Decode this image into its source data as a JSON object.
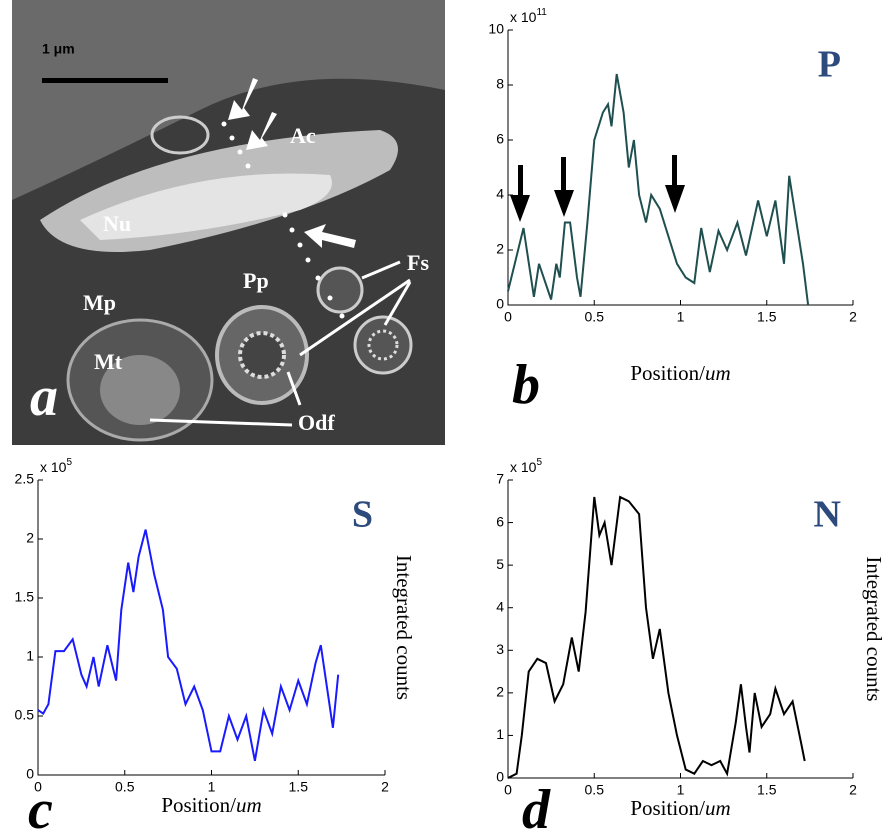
{
  "micrograph": {
    "scale_bar": "1 μm",
    "labels": [
      "Ac",
      "Nu",
      "Pp",
      "Mp",
      "Mt",
      "Fs",
      "Odf"
    ],
    "panel": "a"
  },
  "chart_data": [
    {
      "type": "line",
      "panel": "b",
      "element": "P",
      "color": "#1f4f4f",
      "xlabel": "Position/",
      "xlabel_unit": "um",
      "y_multiplier": "x 10",
      "y_multiplier_exp": "11",
      "xlim": [
        0,
        2
      ],
      "xticks": [
        0,
        0.5,
        1,
        1.5,
        2
      ],
      "ylim": [
        0,
        10
      ],
      "yticks": [
        0,
        2,
        4,
        6,
        8,
        10
      ],
      "x": [
        0,
        0.09,
        0.15,
        0.18,
        0.25,
        0.28,
        0.3,
        0.33,
        0.36,
        0.4,
        0.42,
        0.46,
        0.5,
        0.55,
        0.58,
        0.6,
        0.63,
        0.67,
        0.7,
        0.73,
        0.76,
        0.8,
        0.83,
        0.88,
        0.93,
        0.98,
        1.03,
        1.08,
        1.12,
        1.17,
        1.22,
        1.27,
        1.33,
        1.38,
        1.45,
        1.5,
        1.55,
        1.6,
        1.63,
        1.68,
        1.71,
        1.74
      ],
      "values": [
        0.5,
        2.8,
        0.3,
        1.5,
        0.2,
        1.5,
        1,
        3,
        3,
        1,
        0.3,
        3,
        6,
        7,
        7.3,
        6.5,
        8.4,
        7,
        5,
        6,
        4,
        3,
        4,
        3.5,
        2.5,
        1.5,
        1,
        0.8,
        2.8,
        1.2,
        2.7,
        2,
        3,
        1.8,
        3.8,
        2.5,
        3.8,
        1.5,
        4.7,
        2.7,
        1.5,
        0
      ]
    },
    {
      "type": "line",
      "panel": "c",
      "element": "S",
      "color": "#1a1aff",
      "xlabel": "Position/",
      "xlabel_unit": "um",
      "ylabel": "Integrated counts",
      "y_multiplier": "x 10",
      "y_multiplier_exp": "5",
      "xlim": [
        0,
        2
      ],
      "xticks": [
        0,
        0.5,
        1,
        1.5,
        2
      ],
      "ylim": [
        0,
        2.5
      ],
      "yticks": [
        0,
        0.5,
        1,
        1.5,
        2,
        2.5
      ],
      "x": [
        0,
        0.03,
        0.06,
        0.1,
        0.15,
        0.2,
        0.25,
        0.28,
        0.32,
        0.35,
        0.4,
        0.45,
        0.48,
        0.52,
        0.55,
        0.58,
        0.62,
        0.67,
        0.72,
        0.75,
        0.8,
        0.85,
        0.9,
        0.95,
        1.0,
        1.05,
        1.1,
        1.15,
        1.2,
        1.25,
        1.3,
        1.35,
        1.4,
        1.45,
        1.5,
        1.55,
        1.6,
        1.63,
        1.67,
        1.7,
        1.73
      ],
      "values": [
        0.55,
        0.52,
        0.6,
        1.05,
        1.05,
        1.15,
        0.85,
        0.75,
        1.0,
        0.75,
        1.1,
        0.8,
        1.4,
        1.8,
        1.55,
        1.85,
        2.08,
        1.7,
        1.4,
        1.0,
        0.9,
        0.6,
        0.75,
        0.55,
        0.2,
        0.2,
        0.5,
        0.3,
        0.5,
        0.12,
        0.55,
        0.35,
        0.75,
        0.55,
        0.8,
        0.6,
        0.95,
        1.1,
        0.7,
        0.4,
        0.85
      ]
    },
    {
      "type": "line",
      "panel": "d",
      "element": "N",
      "color": "#000000",
      "xlabel": "Position/",
      "xlabel_unit": "um",
      "ylabel": "Integrated counts",
      "y_multiplier": "x 10",
      "y_multiplier_exp": "5",
      "xlim": [
        0,
        2
      ],
      "xticks": [
        0,
        0.5,
        1,
        1.5,
        2
      ],
      "ylim": [
        0,
        7
      ],
      "yticks": [
        0,
        1,
        2,
        3,
        4,
        5,
        6,
        7
      ],
      "x": [
        0,
        0.05,
        0.08,
        0.12,
        0.17,
        0.22,
        0.27,
        0.32,
        0.37,
        0.41,
        0.45,
        0.5,
        0.53,
        0.56,
        0.6,
        0.65,
        0.7,
        0.76,
        0.8,
        0.84,
        0.88,
        0.93,
        0.98,
        1.03,
        1.08,
        1.13,
        1.18,
        1.23,
        1.27,
        1.32,
        1.35,
        1.38,
        1.4,
        1.43,
        1.47,
        1.52,
        1.55,
        1.6,
        1.65,
        1.7,
        1.72
      ],
      "values": [
        0,
        0.1,
        1.0,
        2.5,
        2.8,
        2.7,
        1.8,
        2.2,
        3.3,
        2.5,
        3.9,
        6.6,
        5.7,
        6.0,
        5.0,
        6.6,
        6.5,
        6.2,
        4.0,
        2.8,
        3.5,
        2.0,
        1.0,
        0.2,
        0.1,
        0.4,
        0.3,
        0.4,
        0.1,
        1.3,
        2.2,
        1.2,
        0.6,
        2.0,
        1.2,
        1.5,
        2.1,
        1.5,
        1.8,
        0.8,
        0.4
      ]
    }
  ]
}
